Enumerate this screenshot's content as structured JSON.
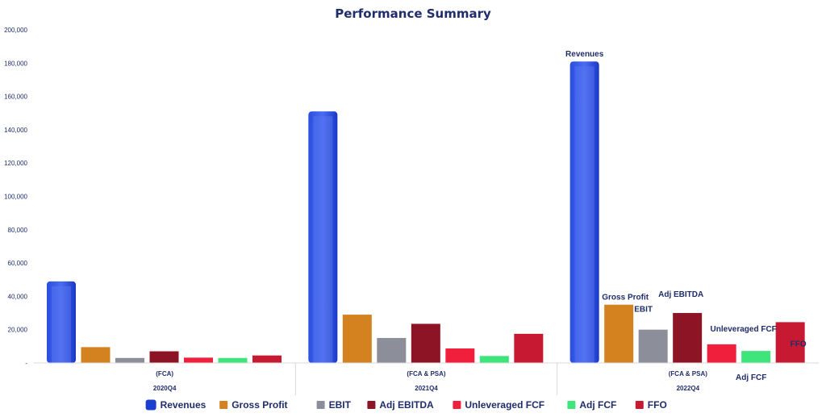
{
  "chart_data": {
    "type": "bar",
    "title": "Performance Summary",
    "xlabel": "",
    "ylabel": "",
    "ylim": [
      0,
      200000
    ],
    "yticks": [
      "-",
      "20,000",
      "40,000",
      "60,000",
      "80,000",
      "100,000",
      "120,000",
      "140,000",
      "160,000",
      "180,000",
      "200,000"
    ],
    "grid": false,
    "legend_position": "bottom",
    "categories": [
      "2020Q4",
      "2021Q4",
      "2022Q4"
    ],
    "group_labels": [
      "(FCA)",
      "(FCA & PSA)",
      "(FCA & PSA)"
    ],
    "series": [
      {
        "name": "Revenues",
        "color": "#1a3fd0",
        "values": [
          49000,
          151000,
          181000
        ]
      },
      {
        "name": "Gross Profit",
        "color": "#d4811f",
        "values": [
          9500,
          29000,
          35000
        ]
      },
      {
        "name": "EBIT",
        "color": "#8c8f99",
        "values": [
          3000,
          15000,
          20000
        ]
      },
      {
        "name": "Adj EBITDA",
        "color": "#8c1424",
        "values": [
          7000,
          23500,
          30000
        ]
      },
      {
        "name": "Unleveraged FCF",
        "color": "#f0203c",
        "values": [
          3200,
          8700,
          11200
        ]
      },
      {
        "name": "Adj FCF",
        "color": "#3ee57a",
        "values": [
          3000,
          4200,
          7200
        ]
      },
      {
        "name": "FFO",
        "color": "#c81932",
        "values": [
          4500,
          17500,
          24500
        ]
      }
    ],
    "annotations": [
      {
        "text": "Revenues",
        "series": "Revenues",
        "category": "2022Q4"
      },
      {
        "text": "Gross Profit",
        "series": "Gross Profit",
        "category": "2022Q4"
      },
      {
        "text": "EBIT",
        "series": "EBIT",
        "category": "2022Q4"
      },
      {
        "text": "Adj EBITDA",
        "series": "Adj EBITDA",
        "category": "2022Q4"
      },
      {
        "text": "Unleveraged FCF",
        "series": "Unleveraged FCF",
        "category": "2022Q4"
      },
      {
        "text": "Adj FCF",
        "series": "Adj FCF",
        "category": "2022Q4"
      },
      {
        "text": "FFO",
        "series": "FFO",
        "category": "2022Q4"
      }
    ]
  }
}
